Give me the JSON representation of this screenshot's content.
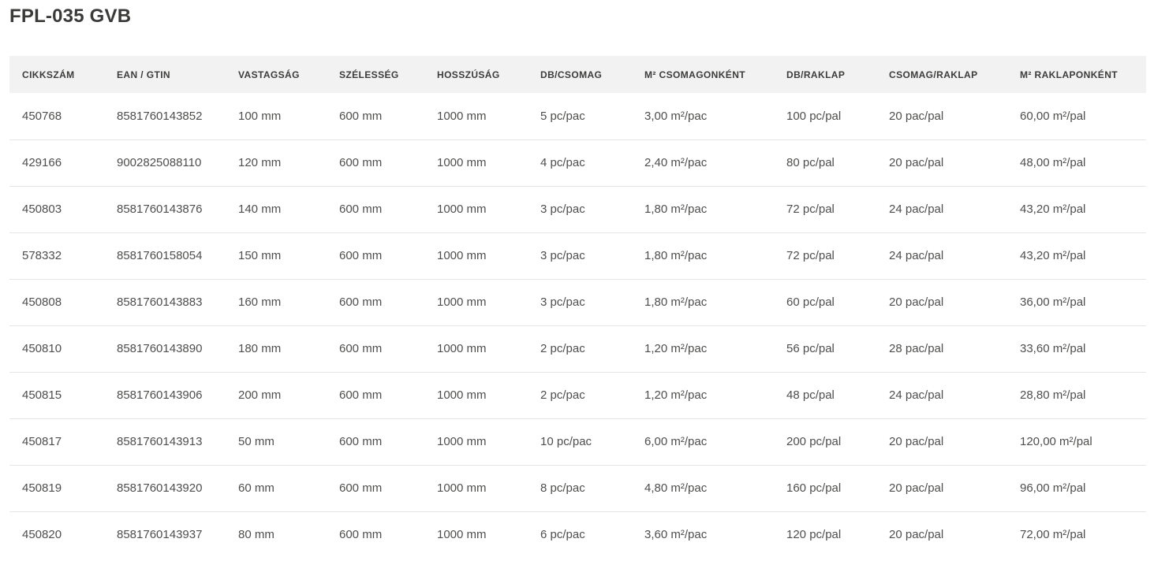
{
  "page": {
    "title": "FPL-035 GVB"
  },
  "colors": {
    "title_text": "#3a3a39",
    "header_background": "#f2f2f2",
    "header_text": "#3c3c3b",
    "cell_text": "#4e4e4d",
    "row_divider": "#e5e5e5",
    "page_background": "#ffffff"
  },
  "table": {
    "columns": [
      {
        "key": "cikkszam",
        "label": "CIKKSZÁM"
      },
      {
        "key": "ean-gtin",
        "label": "EAN / GTIN"
      },
      {
        "key": "vastagsag",
        "label": "VASTAGSÁG"
      },
      {
        "key": "szelesseg",
        "label": "SZÉLESSÉG"
      },
      {
        "key": "hosszusag",
        "label": "HOSSZÚSÁG"
      },
      {
        "key": "db-csomag",
        "label": "DB/CSOMAG"
      },
      {
        "key": "m2-csomagonkent",
        "label": "M² CSOMAGONKÉNT"
      },
      {
        "key": "db-raklap",
        "label": "DB/RAKLAP"
      },
      {
        "key": "csomag-raklap",
        "label": "CSOMAG/RAKLAP"
      },
      {
        "key": "m2-raklaponkent",
        "label": "M² RAKLAPONKÉNT"
      }
    ],
    "rows": [
      [
        "450768",
        "8581760143852",
        "100 mm",
        "600 mm",
        "1000 mm",
        "5 pc/pac",
        "3,00 m²/pac",
        "100 pc/pal",
        "20 pac/pal",
        "60,00 m²/pal"
      ],
      [
        "429166",
        "9002825088110",
        "120 mm",
        "600 mm",
        "1000 mm",
        "4 pc/pac",
        "2,40 m²/pac",
        "80 pc/pal",
        "20 pac/pal",
        "48,00 m²/pal"
      ],
      [
        "450803",
        "8581760143876",
        "140 mm",
        "600 mm",
        "1000 mm",
        "3 pc/pac",
        "1,80 m²/pac",
        "72 pc/pal",
        "24 pac/pal",
        "43,20 m²/pal"
      ],
      [
        "578332",
        "8581760158054",
        "150 mm",
        "600 mm",
        "1000 mm",
        "3 pc/pac",
        "1,80 m²/pac",
        "72 pc/pal",
        "24 pac/pal",
        "43,20 m²/pal"
      ],
      [
        "450808",
        "8581760143883",
        "160 mm",
        "600 mm",
        "1000 mm",
        "3 pc/pac",
        "1,80 m²/pac",
        "60 pc/pal",
        "20 pac/pal",
        "36,00 m²/pal"
      ],
      [
        "450810",
        "8581760143890",
        "180 mm",
        "600 mm",
        "1000 mm",
        "2 pc/pac",
        "1,20 m²/pac",
        "56 pc/pal",
        "28 pac/pal",
        "33,60 m²/pal"
      ],
      [
        "450815",
        "8581760143906",
        "200 mm",
        "600 mm",
        "1000 mm",
        "2 pc/pac",
        "1,20 m²/pac",
        "48 pc/pal",
        "24 pac/pal",
        "28,80 m²/pal"
      ],
      [
        "450817",
        "8581760143913",
        "50 mm",
        "600 mm",
        "1000 mm",
        "10 pc/pac",
        "6,00 m²/pac",
        "200 pc/pal",
        "20 pac/pal",
        "120,00 m²/pal"
      ],
      [
        "450819",
        "8581760143920",
        "60 mm",
        "600 mm",
        "1000 mm",
        "8 pc/pac",
        "4,80 m²/pac",
        "160 pc/pal",
        "20 pac/pal",
        "96,00 m²/pal"
      ],
      [
        "450820",
        "8581760143937",
        "80 mm",
        "600 mm",
        "1000 mm",
        "6 pc/pac",
        "3,60 m²/pac",
        "120 pc/pal",
        "20 pac/pal",
        "72,00 m²/pal"
      ]
    ]
  }
}
